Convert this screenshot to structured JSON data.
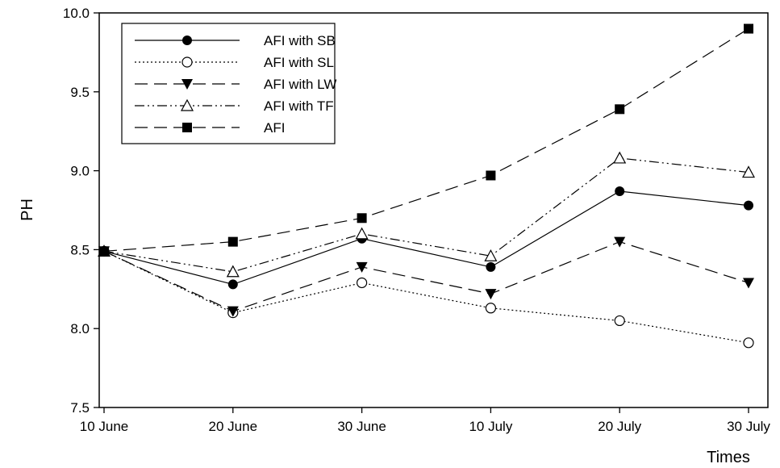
{
  "chart_data": {
    "type": "line",
    "xlabel": "Times",
    "ylabel": "PH",
    "categories": [
      "10 June",
      "20 June",
      "30 June",
      "10 July",
      "20 July",
      "30 July"
    ],
    "ylim": [
      7.5,
      10.0
    ],
    "yticks": [
      "7.5",
      "8.0",
      "8.5",
      "9.0",
      "9.5",
      "10.0"
    ],
    "grid": false,
    "legend_position": "top-left",
    "series": [
      {
        "name": "AFI with SB",
        "marker": "filled-circle",
        "dash": "solid",
        "values": [
          8.49,
          8.28,
          8.57,
          8.39,
          8.87,
          8.78
        ]
      },
      {
        "name": "AFI with SL",
        "marker": "open-circle",
        "dash": "dotted",
        "values": [
          8.49,
          8.1,
          8.29,
          8.13,
          8.05,
          7.91
        ]
      },
      {
        "name": "AFI with LW",
        "marker": "filled-triangle-down",
        "dash": "long-dash",
        "values": [
          8.49,
          8.11,
          8.39,
          8.22,
          8.55,
          8.29
        ]
      },
      {
        "name": "AFI with TF",
        "marker": "open-triangle-up",
        "dash": "dash-dot-dot",
        "values": [
          8.49,
          8.36,
          8.6,
          8.46,
          9.08,
          8.99
        ]
      },
      {
        "name": "AFI",
        "marker": "filled-square",
        "dash": "long-dash",
        "values": [
          8.49,
          8.55,
          8.7,
          8.97,
          9.39,
          9.9
        ]
      }
    ]
  }
}
